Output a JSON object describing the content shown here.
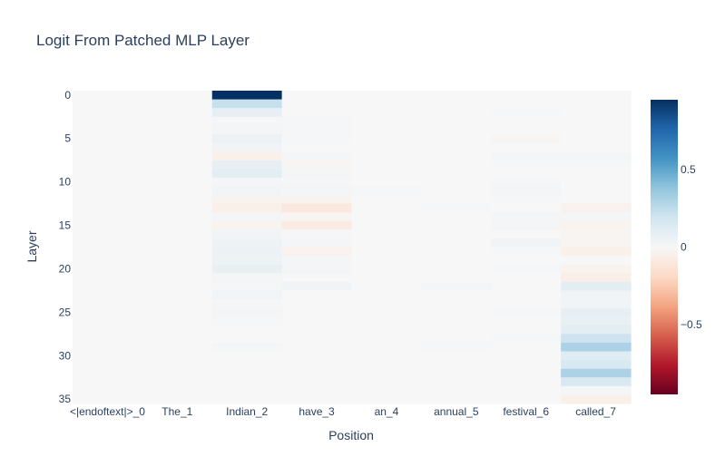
{
  "chart_data": {
    "type": "heatmap",
    "title": "Logit From Patched MLP Layer",
    "xlabel": "Position",
    "ylabel": "Layer",
    "x_categories": [
      "<|endoftext|>_0",
      "The_1",
      "Indian_2",
      "have_3",
      "an_4",
      "annual_5",
      "festival_6",
      "called_7"
    ],
    "y_ticks": [
      0,
      5,
      10,
      15,
      20,
      25,
      30,
      35
    ],
    "n_layers": 36,
    "colorscale": "RdBu",
    "zlim": [
      -0.95,
      0.95
    ],
    "colorbar_ticks": [
      {
        "value": 0.5,
        "label": "0.5"
      },
      {
        "value": 0,
        "label": "0"
      },
      {
        "value": -0.5,
        "label": "−0.5"
      }
    ],
    "z_by_position": [
      [
        0,
        0,
        0,
        0,
        0,
        0,
        0,
        0,
        0,
        0,
        0,
        0,
        0,
        0,
        0,
        0,
        0,
        0,
        0,
        0,
        0,
        0,
        0,
        0,
        0,
        0,
        0,
        0,
        0,
        0,
        0,
        0,
        0,
        0,
        0,
        0
      ],
      [
        0,
        0,
        0,
        0,
        0,
        0,
        0,
        0,
        0,
        0,
        0,
        0,
        0,
        0,
        0,
        0,
        0,
        0,
        0,
        0,
        0,
        0,
        0,
        0,
        0,
        0,
        0,
        0,
        0,
        0,
        0,
        0,
        0,
        0,
        0,
        0
      ],
      [
        0.95,
        0.22,
        0.08,
        0.01,
        0.02,
        0.06,
        0.03,
        -0.05,
        0.08,
        0.1,
        0.02,
        0.03,
        -0.03,
        -0.05,
        0.02,
        -0.03,
        0.03,
        0.05,
        0.06,
        0.05,
        0.07,
        0.02,
        0.01,
        0.03,
        0.01,
        0.02,
        0.01,
        0,
        0,
        0.02,
        0,
        0,
        0,
        0,
        0,
        0
      ],
      [
        0,
        0,
        0,
        0.01,
        0.01,
        0.01,
        0,
        0.02,
        -0.02,
        0.02,
        0.01,
        0.02,
        -0.03,
        -0.1,
        -0.02,
        -0.08,
        0.01,
        0.02,
        -0.04,
        0.02,
        0.02,
        0,
        0.03,
        0,
        0,
        0,
        0,
        0,
        0,
        0,
        0,
        0,
        0,
        0,
        0,
        0
      ],
      [
        0,
        0,
        0,
        0,
        0,
        0,
        0,
        0,
        0,
        0,
        0,
        0.01,
        0,
        0,
        0,
        0,
        0,
        0,
        0,
        0,
        0,
        0,
        0,
        0,
        0,
        0,
        0,
        0,
        0,
        0,
        0,
        0,
        0,
        0,
        0,
        0
      ],
      [
        0,
        0,
        0,
        0,
        0,
        0,
        0,
        0,
        0,
        0,
        0,
        0,
        0,
        0.01,
        0,
        0,
        0,
        0,
        0,
        0,
        0,
        0,
        0.02,
        0,
        0,
        0,
        0,
        0,
        0,
        0.01,
        0,
        0,
        0,
        0,
        0,
        0
      ],
      [
        0,
        0,
        0.01,
        0,
        0,
        -0.02,
        0,
        0.02,
        0.01,
        0,
        0.01,
        0.02,
        0.01,
        0,
        0.02,
        0.02,
        0,
        0.03,
        0.01,
        0,
        0.01,
        0,
        0,
        0,
        0,
        0.01,
        0,
        0,
        0.01,
        0,
        0,
        0,
        0,
        0,
        0,
        0
      ],
      [
        0,
        0,
        0,
        0,
        0,
        0,
        0,
        0.02,
        0.01,
        0,
        0,
        0,
        0,
        -0.04,
        0.02,
        -0.03,
        -0.02,
        -0.02,
        -0.05,
        0,
        -0.03,
        -0.06,
        0.1,
        0.04,
        0.03,
        0.08,
        0.07,
        0.1,
        0.2,
        0.3,
        0.12,
        0.15,
        0.3,
        0.15,
        0.02,
        -0.05
      ]
    ]
  }
}
